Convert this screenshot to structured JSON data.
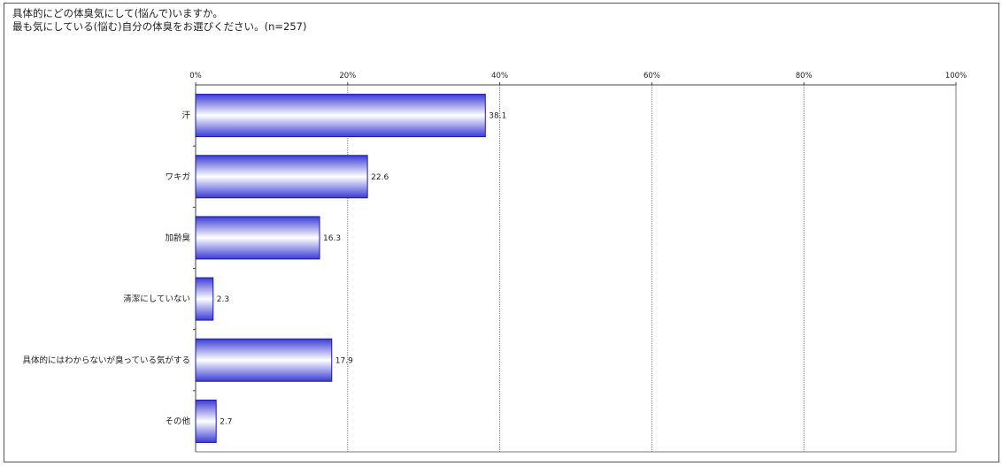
{
  "title_lines": [
    "具体的にどの体臭気にして(悩んで)いますか。",
    "最も気にしている(悩む)自分の体臭をお選びください。(n=257)"
  ],
  "colors": {
    "bar_edge": "#1a1aa0",
    "bar_dark": "#3b3bd6",
    "bar_light": "#ffffff",
    "grid": "#7a7a7a",
    "axis": "#444444"
  },
  "chart_data": {
    "type": "bar",
    "orientation": "horizontal",
    "categories": [
      "汗",
      "ワキガ",
      "加齢臭",
      "清潔にしていない",
      "具体的にはわからないが臭っている気がする",
      "その他"
    ],
    "values": [
      38.1,
      22.6,
      16.3,
      2.3,
      17.9,
      2.7
    ],
    "value_labels": [
      "38.1",
      "22.6",
      "16.3",
      "2.3",
      "17.9",
      "2.7"
    ],
    "xlim": [
      0,
      100
    ],
    "x_ticks": [
      0,
      20,
      40,
      60,
      80,
      100
    ],
    "x_tick_labels": [
      "0%",
      "20%",
      "40%",
      "60%",
      "80%",
      "100%"
    ],
    "grid": true,
    "legend": false
  }
}
